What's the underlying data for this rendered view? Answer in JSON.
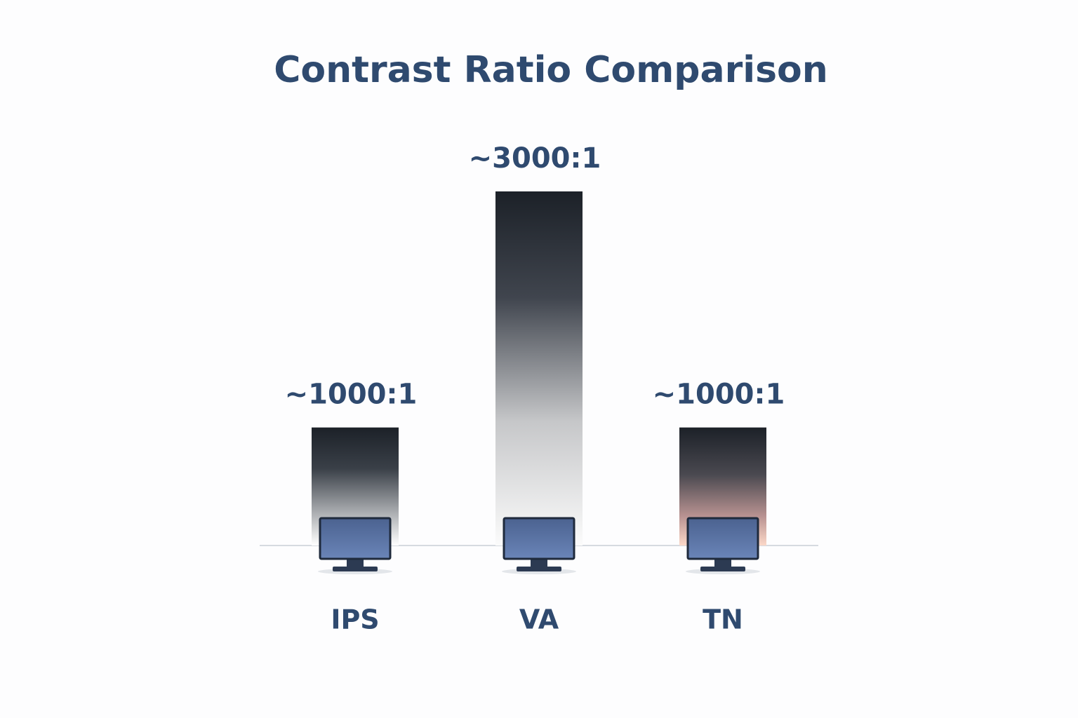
{
  "chart_data": {
    "type": "bar",
    "title": "Contrast Ratio Comparison",
    "categories": [
      "IPS",
      "VA",
      "TN"
    ],
    "values": [
      1000,
      3000,
      1000
    ],
    "value_labels": [
      "~1000:1",
      "~3000:1",
      "~1000:1"
    ]
  }
}
